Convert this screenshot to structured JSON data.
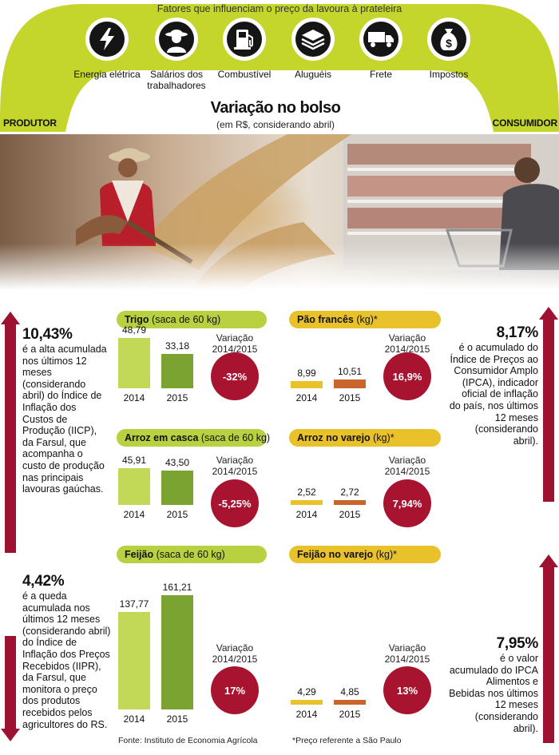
{
  "header": {
    "arch_title": "Fatores que influenciam o preço da lavoura à prateleira",
    "factors": [
      {
        "icon": "lightning-icon",
        "label": "Energia elétrica"
      },
      {
        "icon": "worker-icon",
        "label": "Salários dos trabalhadores"
      },
      {
        "icon": "fuel-pump-icon",
        "label": "Combustível"
      },
      {
        "icon": "stack-icon",
        "label": "Aluguéis"
      },
      {
        "icon": "truck-icon",
        "label": "Frete"
      },
      {
        "icon": "money-bag-icon",
        "label": "Impostos"
      }
    ],
    "left_label": "PRODUTOR",
    "right_label": "CONSUMIDOR",
    "title": "Variação no bolso",
    "subtitle": "(em R$, considerando abril)"
  },
  "left_notes": [
    {
      "number": "10,43%",
      "text": "é a alta acumulada nos últimos 12 meses (considerando abril) do Índice de Inflação dos Custos de Produção (IICP), da Farsul, que acompanha o custo de produção nas principais lavouras gaúchas."
    },
    {
      "number": "4,42%",
      "text": "é a queda acumulada nos últimos 12 meses (considerando abril) do Índice de Inflação dos Preços Recebidos (IIPR), da Farsul, que monitora o preço dos produtos recebidos pelos agricultores do RS."
    }
  ],
  "right_notes": [
    {
      "number": "8,17%",
      "text": "é o acumulado do Índice de Preços ao Consumidor Amplo (IPCA), indicador oficial de inflação do país, nos últimos 12 meses (considerando abril)."
    },
    {
      "number": "7,95%",
      "text": "é o valor acumulado do IPCA Alimentos e Bebidas nos últimos 12 meses (considerando abril)."
    }
  ],
  "variation_label": "Variação 2014/2015",
  "footer": {
    "source": "Fonte: Instituto de Economia Agrícola",
    "note": "*Preço referente a São Paulo"
  },
  "colors": {
    "green_light": "#c2d957",
    "green_dark": "#7aa332",
    "yellow_bar": "#e8c12b",
    "orange_bar": "#c8642c",
    "badge_red": "#a8142f",
    "arrow_red": "#9c1230",
    "pill_green": "#b8d140",
    "pill_yellow": "#e8c12b"
  },
  "chart_data": [
    {
      "type": "bar",
      "title": "Trigo",
      "unit": "(saca de 60 kg)",
      "categories": [
        "2014",
        "2015"
      ],
      "values": [
        48.79,
        33.18
      ],
      "value_labels": [
        "48,79",
        "33,18"
      ],
      "variation": "-32%"
    },
    {
      "type": "bar",
      "title": "Pão francês",
      "unit": "(kg)*",
      "categories": [
        "2014",
        "2015"
      ],
      "values": [
        8.99,
        10.51
      ],
      "value_labels": [
        "8,99",
        "10,51"
      ],
      "variation": "16,9%"
    },
    {
      "type": "bar",
      "title": "Arroz em casca",
      "unit": "(saca de 60 kg)",
      "categories": [
        "2014",
        "2015"
      ],
      "values": [
        45.91,
        43.5
      ],
      "value_labels": [
        "45,91",
        "43,50"
      ],
      "variation": "-5,25%"
    },
    {
      "type": "bar",
      "title": "Arroz no varejo",
      "unit": "(kg)*",
      "categories": [
        "2014",
        "2015"
      ],
      "values": [
        2.52,
        2.72
      ],
      "value_labels": [
        "2,52",
        "2,72"
      ],
      "variation": "7,94%"
    },
    {
      "type": "bar",
      "title": "Feijão",
      "unit": "(saca de 60 kg)",
      "categories": [
        "2014",
        "2015"
      ],
      "values": [
        137.77,
        161.21
      ],
      "value_labels": [
        "137,77",
        "161,21"
      ],
      "variation": "17%"
    },
    {
      "type": "bar",
      "title": "Feijão no varejo",
      "unit": "(kg)*",
      "categories": [
        "2014",
        "2015"
      ],
      "values": [
        4.29,
        4.85
      ],
      "value_labels": [
        "4,29",
        "4,85"
      ],
      "variation": "13%"
    }
  ]
}
